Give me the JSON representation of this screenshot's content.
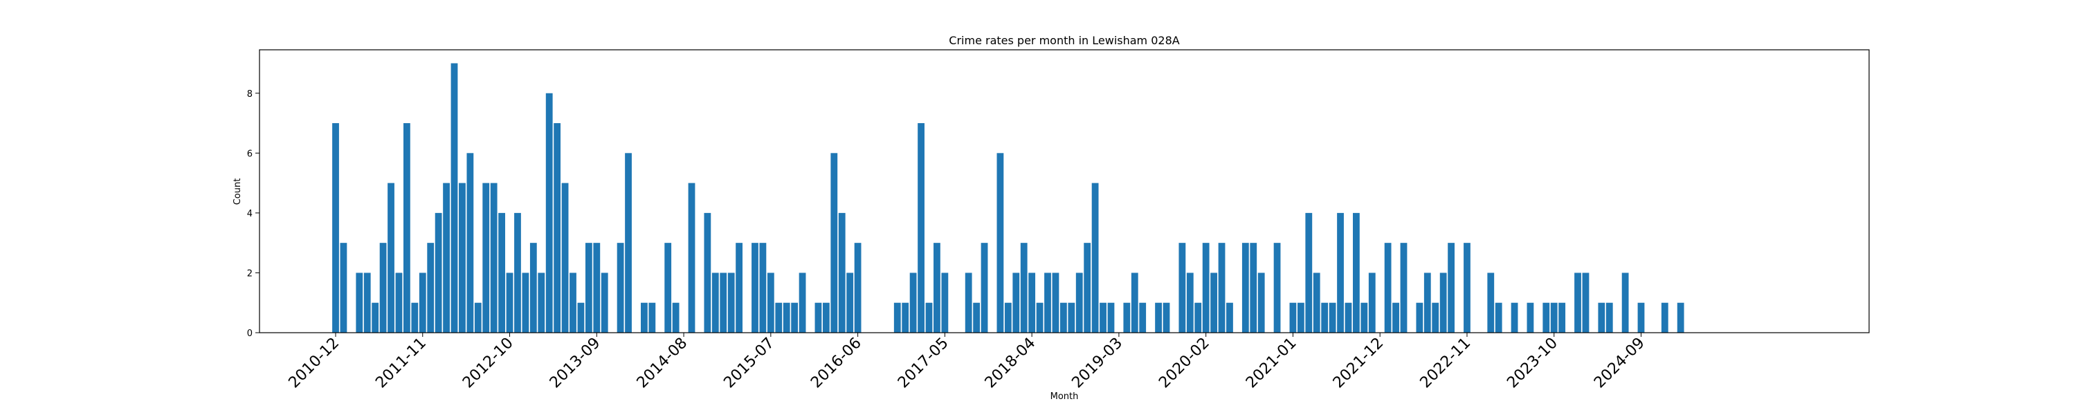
{
  "chart_data": {
    "type": "bar",
    "title": "Crime rates per month in Lewisham 028A",
    "xlabel": "Month",
    "ylabel": "Count",
    "ylim": [
      0,
      9.45
    ],
    "y_ticks": [
      0,
      2,
      4,
      6,
      8
    ],
    "x_tick_labels": [
      "2010-12",
      "2011-11",
      "2012-10",
      "2013-09",
      "2014-08",
      "2015-07",
      "2016-06",
      "2017-05",
      "2018-04",
      "2019-03",
      "2020-02",
      "2021-01",
      "2021-12",
      "2022-11",
      "2023-10",
      "2024-09"
    ],
    "x_start": "2010-12",
    "color": "#1f77b4",
    "grid": false,
    "values": [
      7,
      3,
      0,
      2,
      2,
      1,
      3,
      5,
      2,
      7,
      1,
      2,
      3,
      4,
      5,
      9,
      5,
      6,
      1,
      5,
      5,
      4,
      2,
      4,
      2,
      3,
      2,
      8,
      7,
      5,
      2,
      1,
      3,
      3,
      2,
      0,
      3,
      6,
      0,
      1,
      1,
      0,
      3,
      1,
      0,
      5,
      0,
      4,
      2,
      2,
      2,
      3,
      0,
      3,
      3,
      2,
      1,
      1,
      1,
      2,
      0,
      1,
      1,
      6,
      4,
      2,
      3,
      0,
      0,
      0,
      0,
      1,
      1,
      2,
      7,
      1,
      3,
      2,
      0,
      0,
      2,
      1,
      3,
      0,
      6,
      1,
      2,
      3,
      2,
      1,
      2,
      2,
      1,
      1,
      2,
      3,
      5,
      1,
      1,
      0,
      1,
      2,
      1,
      0,
      1,
      1,
      0,
      3,
      2,
      1,
      3,
      2,
      3,
      1,
      0,
      3,
      3,
      2,
      0,
      3,
      0,
      1,
      1,
      4,
      2,
      1,
      1,
      4,
      1,
      4,
      1,
      2,
      0,
      3,
      1,
      3,
      0,
      1,
      2,
      1,
      2,
      3,
      0,
      3,
      0,
      0,
      2,
      1,
      0,
      1,
      0,
      1,
      0,
      1,
      1,
      1,
      0,
      2,
      2,
      0,
      1,
      1,
      0,
      2,
      0,
      1,
      0,
      0,
      1,
      0,
      1
    ]
  }
}
